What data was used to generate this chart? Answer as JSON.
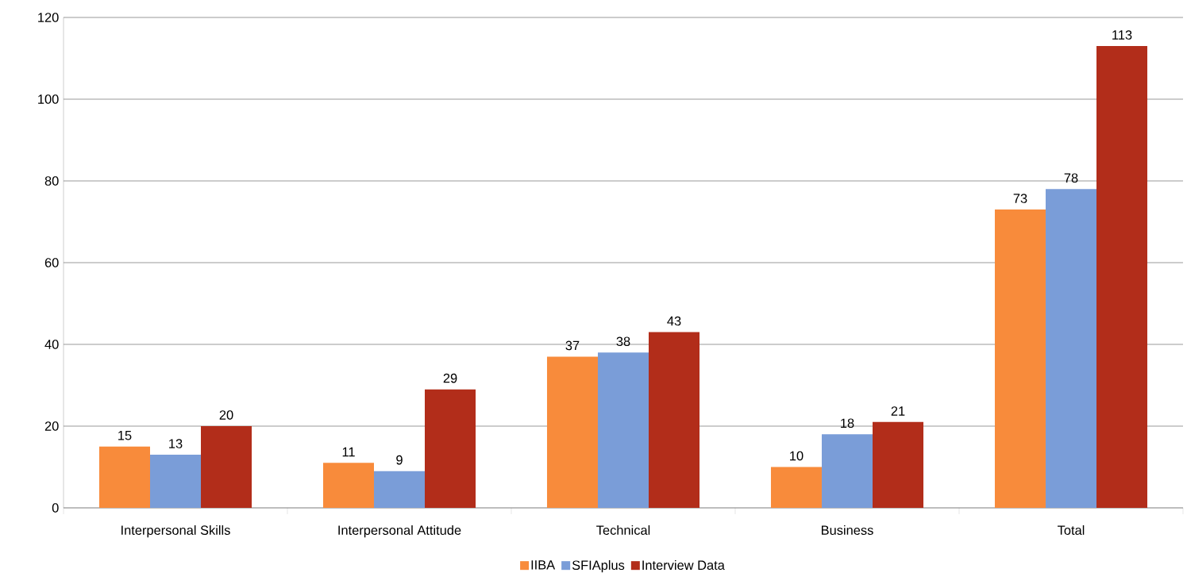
{
  "chart_data": {
    "type": "bar",
    "categories": [
      "Interpersonal Skills",
      "Interpersonal Attitude",
      "Technical",
      "Business",
      "Total"
    ],
    "series": [
      {
        "name": "IIBA",
        "color": "#f88b3b",
        "values": [
          15,
          11,
          37,
          10,
          73
        ]
      },
      {
        "name": "SFIAplus",
        "color": "#7a9dd8",
        "values": [
          13,
          9,
          38,
          18,
          78
        ]
      },
      {
        "name": "Interview Data",
        "color": "#b22d1a",
        "values": [
          20,
          29,
          43,
          21,
          113
        ]
      }
    ],
    "ylim": [
      0,
      120
    ],
    "yticks": [
      0,
      20,
      40,
      60,
      80,
      100,
      120
    ],
    "grid": "y",
    "legend": "bottom",
    "data_labels": true
  }
}
